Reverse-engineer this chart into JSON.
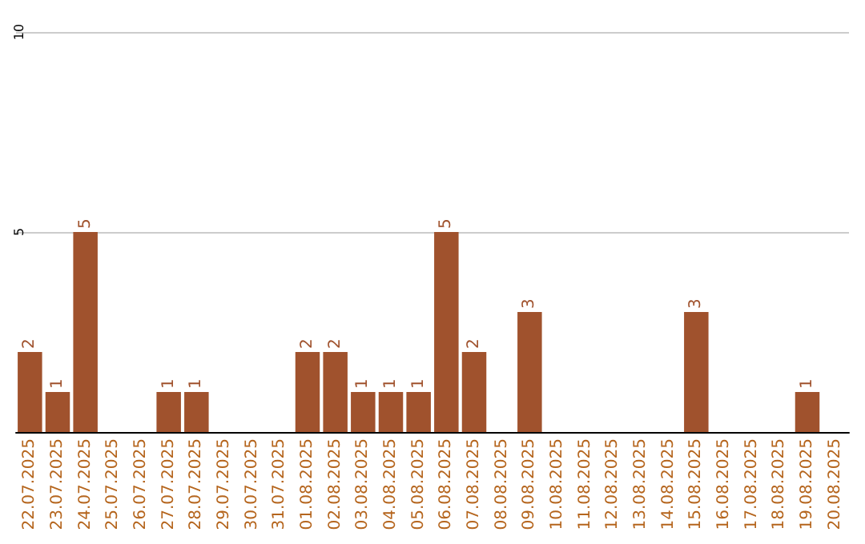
{
  "chart_data": {
    "type": "bar",
    "categories": [
      "22.07.2025",
      "23.07.2025",
      "24.07.2025",
      "25.07.2025",
      "26.07.2025",
      "27.07.2025",
      "28.07.2025",
      "29.07.2025",
      "30.07.2025",
      "31.07.2025",
      "01.08.2025",
      "02.08.2025",
      "03.08.2025",
      "04.08.2025",
      "05.08.2025",
      "06.08.2025",
      "07.08.2025",
      "08.08.2025",
      "09.08.2025",
      "10.08.2025",
      "11.08.2025",
      "12.08.2025",
      "13.08.2025",
      "14.08.2025",
      "15.08.2025",
      "16.08.2025",
      "17.08.2025",
      "18.08.2025",
      "19.08.2025",
      "20.08.2025"
    ],
    "values": [
      2,
      1,
      5,
      0,
      0,
      1,
      1,
      0,
      0,
      0,
      2,
      2,
      1,
      1,
      1,
      5,
      2,
      0,
      3,
      0,
      0,
      0,
      0,
      0,
      3,
      0,
      0,
      0,
      1,
      0
    ],
    "value_labels": [
      "2",
      "1",
      "5",
      null,
      null,
      "1",
      "1",
      null,
      null,
      null,
      "2",
      "2",
      "1",
      "1",
      "1",
      "5",
      "2",
      null,
      "3",
      null,
      null,
      null,
      null,
      null,
      "3",
      null,
      null,
      null,
      "1",
      null
    ],
    "color": "#a0522d",
    "ylim": [
      0,
      10
    ],
    "yticks": [
      {
        "value": 0,
        "label": null
      },
      5,
      10
    ],
    "grid": "y"
  }
}
